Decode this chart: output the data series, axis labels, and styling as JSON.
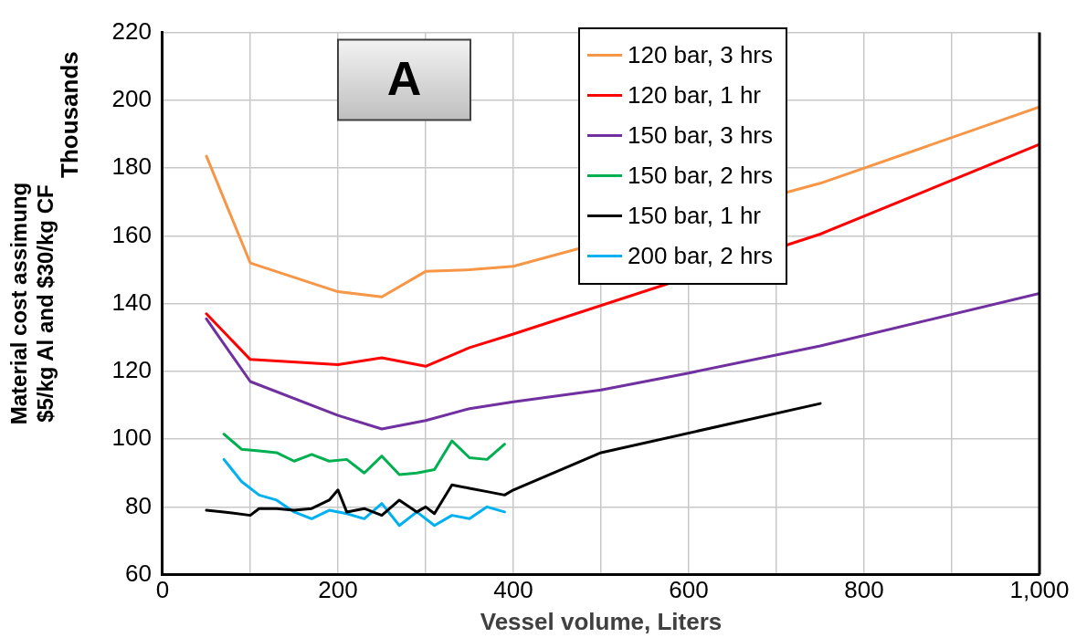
{
  "chart_data": {
    "type": "line",
    "xlabel": "Vessel volume, Liters",
    "ylabel": "Material cost assimung\n$5/kg Al and $30/kg CF",
    "annotations": [
      "Thousands",
      "A"
    ],
    "xlim": [
      0,
      1000
    ],
    "xticks": [
      0,
      {
        "value": 100,
        "label": null
      },
      200,
      {
        "value": 300,
        "label": null
      },
      400,
      {
        "value": 500,
        "label": null
      },
      600,
      {
        "value": 700,
        "label": null
      },
      800,
      {
        "value": 900,
        "label": null
      },
      {
        "value": 1000,
        "label": "1,000"
      }
    ],
    "ylim": [
      60,
      220
    ],
    "yticks": [
      60,
      80,
      100,
      120,
      140,
      160,
      180,
      200,
      220
    ],
    "grid": true,
    "legend": "top right",
    "marker": "none",
    "line_style": "solid",
    "series": [
      {
        "name": "120 bar, 3 hrs",
        "color": "#f79646",
        "x": [
          50,
          100,
          200,
          250,
          300,
          350,
          400,
          750,
          1000
        ],
        "values": [
          183.5,
          152,
          143.5,
          142,
          149.5,
          150,
          151,
          175.5,
          198
        ]
      },
      {
        "name": "120 bar, 1 hr",
        "color": "#ff0000",
        "x": [
          50,
          100,
          200,
          250,
          300,
          350,
          400,
          750,
          1000
        ],
        "values": [
          137,
          123.5,
          122,
          124,
          121.5,
          127,
          131,
          160.5,
          187
        ]
      },
      {
        "name": "150 bar, 3 hrs",
        "color": "#7030a0",
        "x": [
          50,
          100,
          200,
          250,
          300,
          350,
          400,
          500,
          600,
          750,
          1000
        ],
        "values": [
          135.5,
          117,
          107,
          103,
          105.5,
          109,
          111,
          114.5,
          119.5,
          127.5,
          143
        ]
      },
      {
        "name": "150 bar, 2 hrs",
        "color": "#00b050",
        "x": [
          70,
          90,
          110,
          130,
          150,
          170,
          190,
          210,
          230,
          250,
          270,
          290,
          310,
          330,
          350,
          370,
          390
        ],
        "values": [
          101.5,
          97,
          96.5,
          96,
          93.5,
          95.5,
          93.5,
          94,
          90,
          95,
          89.5,
          90,
          91,
          99.5,
          94.5,
          94,
          98.5
        ]
      },
      {
        "name": "150 bar, 1 hr",
        "color": "#000000",
        "x": [
          50,
          70,
          100,
          110,
          130,
          150,
          170,
          190,
          200,
          210,
          230,
          250,
          270,
          290,
          300,
          310,
          330,
          350,
          370,
          390,
          400,
          500,
          750
        ],
        "values": [
          79,
          78.5,
          77.5,
          79.5,
          79.5,
          79,
          79.5,
          82,
          85,
          78.5,
          79.5,
          77.5,
          82,
          78.5,
          80,
          78,
          86.5,
          85.5,
          84.5,
          83.5,
          85,
          96,
          110.5
        ]
      },
      {
        "name": "200 bar, 2 hrs",
        "color": "#00b0f0",
        "x": [
          70,
          90,
          110,
          130,
          150,
          170,
          190,
          210,
          230,
          250,
          270,
          290,
          310,
          330,
          350,
          370,
          390
        ],
        "values": [
          94,
          87.5,
          83.5,
          82,
          78.5,
          76.5,
          79,
          78,
          76.5,
          81,
          74.5,
          78.5,
          74.5,
          77.5,
          76.5,
          80,
          78.5
        ]
      }
    ]
  }
}
